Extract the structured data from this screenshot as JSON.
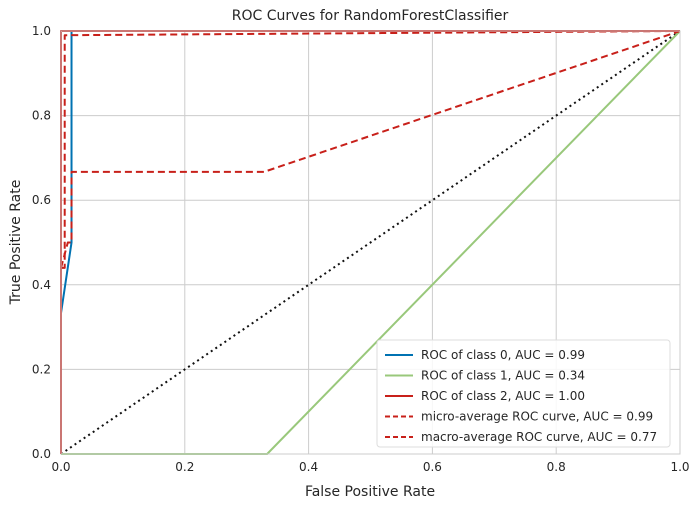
{
  "chart_data": {
    "type": "line",
    "title": "ROC Curves for RandomForestClassifier",
    "xlabel": "False Positive Rate",
    "ylabel": "True Positive Rate",
    "xlim": [
      0,
      1
    ],
    "ylim": [
      0,
      1
    ],
    "x_ticks": [
      "0.0",
      "0.2",
      "0.4",
      "0.6",
      "0.8",
      "1.0"
    ],
    "y_ticks": [
      "0.0",
      "0.2",
      "0.4",
      "0.6",
      "0.8",
      "1.0"
    ],
    "grid": true,
    "legend_position": "lower-right",
    "series": [
      {
        "name": "ROC of class 0, AUC = 0.99",
        "color": "#0072b2",
        "style": "solid",
        "x": [
          0,
          0,
          0.017,
          0.017,
          0.017,
          1.0
        ],
        "y": [
          0,
          0.333,
          0.5,
          0.5,
          1.0,
          1.0
        ]
      },
      {
        "name": "ROC of class 1, AUC = 0.34",
        "color": "#99c87b",
        "style": "solid",
        "x": [
          0,
          0.333,
          1.0
        ],
        "y": [
          0,
          0,
          1.0
        ]
      },
      {
        "name": "ROC of class 2, AUC = 1.00",
        "color": "#c8201a",
        "style": "solid",
        "x": [
          0,
          0,
          1.0
        ],
        "y": [
          0,
          1.0,
          1.0
        ]
      },
      {
        "name": "micro-average ROC curve, AUC = 0.99",
        "color": "#c8201a",
        "style": "dashed",
        "x": [
          0,
          0,
          0.006,
          0.006,
          1.0
        ],
        "y": [
          0,
          0.44,
          0.44,
          0.99,
          1.0
        ]
      },
      {
        "name": "macro-average ROC curve, AUC = 0.77",
        "color": "#c8201a",
        "style": "dashed",
        "x": [
          0,
          0.011,
          0.017,
          0.017,
          0.328,
          1.0
        ],
        "y": [
          0.44,
          0.5,
          0.5,
          0.667,
          0.667,
          1.0
        ]
      }
    ],
    "reference_line": {
      "color": "#111111",
      "style": "dotted",
      "x": [
        0,
        1
      ],
      "y": [
        0,
        1
      ]
    }
  }
}
